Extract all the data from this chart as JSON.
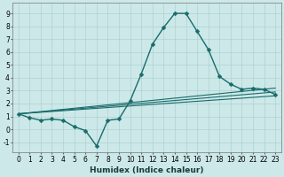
{
  "title": "",
  "xlabel": "Humidex (Indice chaleur)",
  "ylabel": "",
  "background_color": "#cce8e8",
  "grid_color": "#aacccc",
  "line_color": "#1a6b6b",
  "xlim": [
    -0.5,
    23.5
  ],
  "ylim": [
    -1.8,
    9.8
  ],
  "xticks": [
    0,
    1,
    2,
    3,
    4,
    5,
    6,
    7,
    8,
    9,
    10,
    11,
    12,
    13,
    14,
    15,
    16,
    17,
    18,
    19,
    20,
    21,
    22,
    23
  ],
  "yticks": [
    -1,
    0,
    1,
    2,
    3,
    4,
    5,
    6,
    7,
    8,
    9
  ],
  "main_x": [
    0,
    1,
    2,
    3,
    4,
    5,
    6,
    7,
    8,
    9,
    10,
    11,
    12,
    13,
    14,
    15,
    16,
    17,
    18,
    19,
    20,
    21,
    22,
    23
  ],
  "main_y": [
    1.2,
    0.9,
    0.7,
    0.8,
    0.7,
    0.2,
    -0.1,
    -1.3,
    0.7,
    0.8,
    2.2,
    4.3,
    6.6,
    7.9,
    9.0,
    9.0,
    7.6,
    6.2,
    4.1,
    3.5,
    3.1,
    3.2,
    3.1,
    2.7
  ],
  "linear_lines": [
    {
      "x0": 0,
      "x1": 23,
      "y0": 1.2,
      "y1": 3.2
    },
    {
      "x0": 0,
      "x1": 23,
      "y0": 1.2,
      "y1": 2.9
    },
    {
      "x0": 0,
      "x1": 23,
      "y0": 1.2,
      "y1": 2.6
    }
  ],
  "markersize": 2.5,
  "linewidth_main": 1.0,
  "linewidth_linear": 0.8,
  "xlabel_fontsize": 6.5,
  "tick_fontsize": 5.5
}
